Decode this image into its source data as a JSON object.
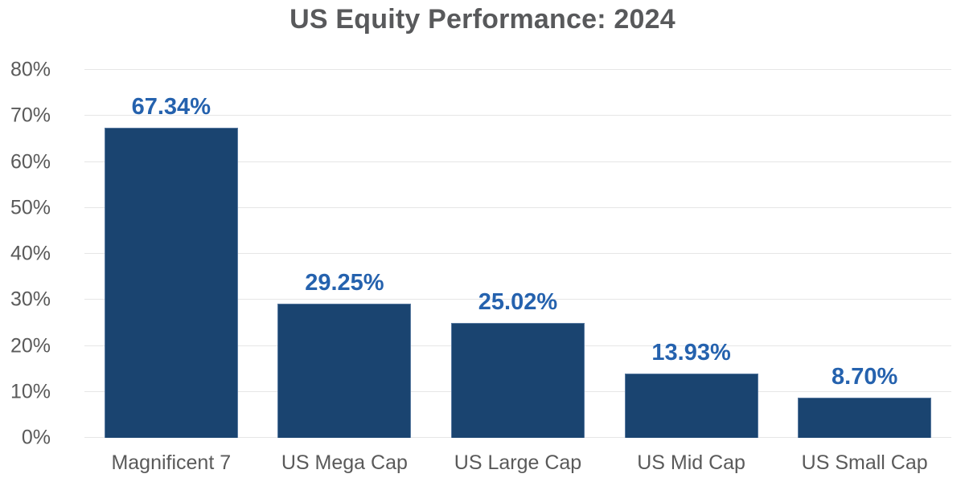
{
  "colors": {
    "bar_fill": "#1a4470",
    "bar_stroke": "rgba(122,150,186,0.65)",
    "value_label": "#2562ae",
    "title_text": "#58595b",
    "axis_text": "#5a5a5a",
    "gridline": "#e6e6e6",
    "background": "#ffffff"
  },
  "chart_data": {
    "type": "bar",
    "title": "US Equity Performance: 2024",
    "categories": [
      "Magnificent 7",
      "US Mega Cap",
      "US Large Cap",
      "US Mid Cap",
      "US Small Cap"
    ],
    "values": [
      67.34,
      29.25,
      25.02,
      13.93,
      8.7
    ],
    "value_labels": [
      "67.34%",
      "29.25%",
      "25.02%",
      "13.93%",
      "8.70%"
    ],
    "xlabel": "",
    "ylabel": "",
    "ylim": [
      0,
      80
    ],
    "y_ticks": [
      0,
      10,
      20,
      30,
      40,
      50,
      60,
      70,
      80
    ],
    "y_tick_labels": [
      "0%",
      "10%",
      "20%",
      "30%",
      "40%",
      "50%",
      "60%",
      "70%",
      "80%"
    ],
    "grid": "horizontal-only",
    "legend": "none",
    "bar_orientation": "vertical"
  }
}
